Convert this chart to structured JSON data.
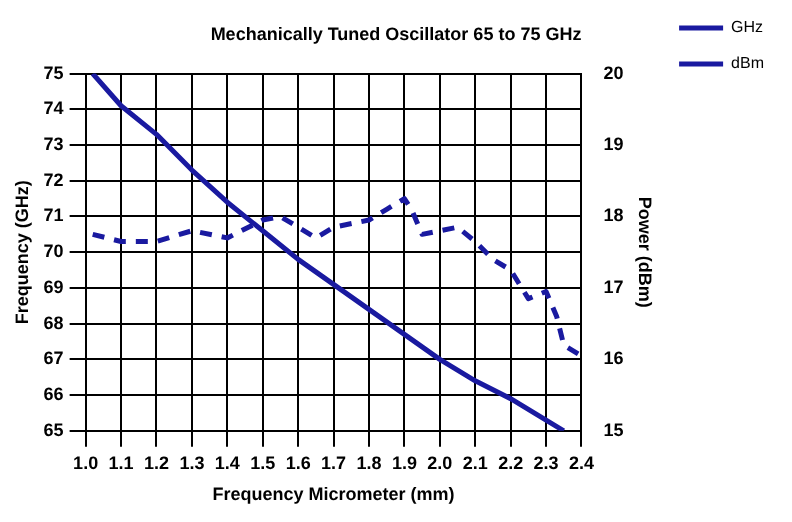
{
  "chart_data": {
    "type": "line",
    "title": "Mechanically Tuned Oscillator 65 to 75 GHz",
    "xlabel": "Frequency Micrometer (mm)",
    "ylabel": "Frequency (GHz)",
    "y2label": "Power (dBm)",
    "xlim": [
      1.0,
      2.4
    ],
    "xticks": [
      {
        "value": 1.0,
        "label": "1.0"
      },
      1.1,
      1.2,
      1.3,
      1.4,
      1.5,
      1.6,
      1.7,
      1.8,
      1.9,
      {
        "value": 2.0,
        "label": "2.0"
      },
      2.1,
      2.2,
      2.3,
      2.4
    ],
    "ylim": [
      65,
      75
    ],
    "yticks": [
      65,
      66,
      67,
      68,
      69,
      70,
      71,
      72,
      73,
      74,
      75
    ],
    "y2lim": [
      15,
      20
    ],
    "y2ticks": [
      15,
      16,
      17,
      18,
      19,
      20
    ],
    "grid": true,
    "legend": "top right",
    "marker": "none",
    "series": [
      {
        "name": "GHz",
        "color": "#1a1aa0",
        "line_style": "solid",
        "x": [
          1.02,
          1.1,
          1.2,
          1.3,
          1.4,
          1.5,
          1.6,
          1.7,
          1.8,
          1.9,
          2.0,
          2.1,
          2.2,
          2.3,
          2.35
        ],
        "values": [
          75,
          74.1,
          73.3,
          72.3,
          71.4,
          70.6,
          69.8,
          69.1,
          68.4,
          67.7,
          67.0,
          66.4,
          65.9,
          65.3,
          65.0
        ]
      },
      {
        "name": "dBm",
        "color": "#1a1aa0",
        "line_style": "dashed",
        "axis": "y2",
        "x": [
          1.02,
          1.1,
          1.2,
          1.3,
          1.4,
          1.5,
          1.55,
          1.6,
          1.65,
          1.7,
          1.8,
          1.85,
          1.9,
          1.92,
          1.95,
          2.0,
          2.05,
          2.1,
          2.15,
          2.2,
          2.25,
          2.3,
          2.33,
          2.35,
          2.4
        ],
        "values": [
          17.75,
          17.65,
          17.65,
          17.8,
          17.7,
          17.95,
          18.0,
          17.85,
          17.7,
          17.85,
          17.95,
          18.1,
          18.25,
          18.1,
          17.75,
          17.8,
          17.85,
          17.65,
          17.4,
          17.25,
          16.85,
          16.95,
          16.6,
          16.2,
          16.05
        ]
      }
    ]
  }
}
